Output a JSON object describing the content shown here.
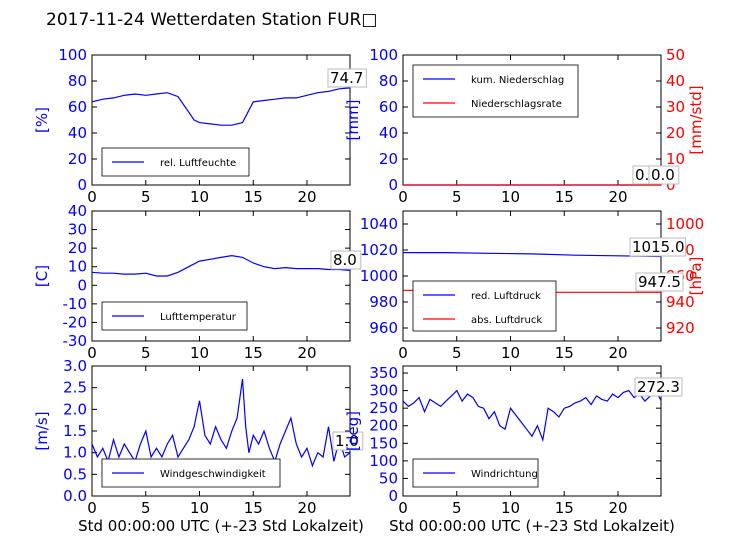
{
  "title": "2017-11-24 Wetterdaten Station FUR□",
  "colors": {
    "primary": "#0000ff",
    "secondary": "#ff0000",
    "axis": "#000000"
  },
  "chart_data": [
    {
      "type": "line",
      "panel": "humidity",
      "ylabel": "[%]",
      "ylim": [
        0,
        100
      ],
      "yticks": [
        0,
        20,
        40,
        60,
        80,
        100
      ],
      "xlim": [
        0,
        24
      ],
      "xticks": [
        0,
        5,
        10,
        15,
        20
      ],
      "xlabel": "",
      "legend": [
        "rel. Luftfeuchte"
      ],
      "legend_position": "lower-left",
      "annotation": "74.7",
      "series": [
        {
          "name": "rel. Luftfeuchte",
          "color": "#0000ff",
          "x": [
            0,
            1,
            2,
            3,
            4,
            5,
            6,
            7,
            8,
            9,
            9.5,
            10,
            11,
            12,
            13,
            14,
            14.5,
            15,
            16,
            17,
            18,
            19,
            20,
            21,
            22,
            23,
            24
          ],
          "y": [
            64,
            66,
            67,
            69,
            70,
            69,
            70,
            71,
            68,
            56,
            50,
            48,
            47,
            46,
            46,
            48,
            56,
            64,
            65,
            66,
            67,
            67,
            69,
            71,
            72,
            74,
            74.7
          ]
        }
      ]
    },
    {
      "type": "line",
      "panel": "precipitation",
      "ylabel": "[mm]",
      "ylabel_right": "[mm/std]",
      "ylim": [
        0,
        100
      ],
      "yticks": [
        0,
        20,
        40,
        60,
        80,
        100
      ],
      "ylim_right": [
        0,
        50
      ],
      "yticks_right": [
        0,
        10,
        20,
        30,
        40,
        50
      ],
      "xlim": [
        0,
        24
      ],
      "xticks": [
        0,
        5,
        10,
        15,
        20
      ],
      "xlabel": "",
      "legend": [
        "kum. Niederschlag",
        "Niederschlagsrate"
      ],
      "legend_position": "upper-left",
      "annotations": [
        "0.0",
        "0.0"
      ],
      "series": [
        {
          "name": "kum. Niederschlag",
          "color": "#0000ff",
          "x": [
            0,
            24
          ],
          "y": [
            0,
            0
          ]
        },
        {
          "name": "Niederschlagsrate",
          "color": "#ff0000",
          "x": [
            0,
            24
          ],
          "y": [
            0,
            0
          ]
        }
      ]
    },
    {
      "type": "line",
      "panel": "temperature",
      "ylabel": "[C]",
      "ylim": [
        -30,
        40
      ],
      "yticks": [
        -30,
        -20,
        -10,
        0,
        10,
        20,
        30,
        40
      ],
      "xlim": [
        0,
        24
      ],
      "xticks": [
        0,
        5,
        10,
        15,
        20
      ],
      "xlabel": "",
      "legend": [
        "Lufttemperatur"
      ],
      "legend_position": "lower-left",
      "annotation": "8.0",
      "series": [
        {
          "name": "Lufttemperatur",
          "color": "#0000ff",
          "x": [
            0,
            1,
            2,
            3,
            4,
            5,
            6,
            7,
            8,
            9,
            10,
            11,
            12,
            13,
            14,
            15,
            16,
            17,
            18,
            19,
            20,
            21,
            22,
            23,
            24
          ],
          "y": [
            7,
            6.5,
            6.5,
            6,
            6,
            6.5,
            5,
            5,
            7,
            10,
            13,
            14,
            15,
            16,
            15,
            12,
            10,
            9,
            9.5,
            9,
            9,
            9,
            8.5,
            8.5,
            8
          ]
        }
      ]
    },
    {
      "type": "line",
      "panel": "pressure",
      "ylim": [
        950,
        1050
      ],
      "yticks": [
        960,
        980,
        1000,
        1020,
        1040
      ],
      "ylabel_right": "[hPa]",
      "ylim_right": [
        910,
        1010
      ],
      "yticks_right": [
        920,
        940,
        960,
        980,
        1000
      ],
      "xlim": [
        0,
        24
      ],
      "xticks": [
        0,
        5,
        10,
        15,
        20
      ],
      "xlabel": "",
      "legend": [
        "red. Luftdruck",
        "abs. Luftdruck"
      ],
      "legend_position": "lower-left",
      "annotations": [
        "1015.0",
        "947.5"
      ],
      "series": [
        {
          "name": "red. Luftdruck",
          "color": "#0000ff",
          "x": [
            0,
            4,
            8,
            12,
            16,
            20,
            24
          ],
          "y": [
            1018,
            1018,
            1017.5,
            1017,
            1016,
            1015.5,
            1015
          ]
        },
        {
          "name": "abs. Luftdruck",
          "axis": "right",
          "color": "#ff0000",
          "x": [
            0,
            4,
            8,
            12,
            16,
            20,
            24
          ],
          "y": [
            949,
            948.5,
            948,
            947.5,
            947.5,
            947.5,
            947.5
          ]
        }
      ]
    },
    {
      "type": "line",
      "panel": "wind-speed",
      "ylabel": "[m/s]",
      "ylim": [
        0,
        3.0
      ],
      "yticks": [
        0.0,
        0.5,
        1.0,
        1.5,
        2.0,
        2.5,
        3.0
      ],
      "xlim": [
        0,
        24
      ],
      "xticks": [
        0,
        5,
        10,
        15,
        20
      ],
      "xlabel": "Std 00:00:00 UTC (+-23 Std Lokalzeit)",
      "legend": [
        "Windgeschwindigkeit"
      ],
      "legend_position": "lower-left",
      "annotation": "1.0",
      "series": [
        {
          "name": "Windgeschwindigkeit",
          "color": "#0000ff",
          "x": [
            0,
            0.5,
            1,
            1.5,
            2,
            2.5,
            3,
            3.5,
            4,
            4.5,
            5,
            5.5,
            6,
            6.5,
            7,
            7.5,
            8,
            8.5,
            9,
            9.5,
            10,
            10.5,
            11,
            11.5,
            12,
            12.5,
            13,
            13.5,
            14,
            14.3,
            14.6,
            15,
            15.5,
            16,
            16.5,
            17,
            17.5,
            18,
            18.5,
            19,
            19.5,
            20,
            20.5,
            21,
            21.5,
            22,
            22.5,
            23,
            23.5,
            24
          ],
          "y": [
            1.2,
            0.9,
            1.1,
            0.8,
            1.3,
            0.9,
            1.2,
            1.0,
            0.8,
            1.2,
            1.5,
            0.9,
            1.1,
            0.9,
            1.2,
            1.4,
            0.9,
            1.1,
            1.3,
            1.6,
            2.2,
            1.4,
            1.2,
            1.6,
            1.3,
            1.1,
            1.5,
            1.8,
            2.7,
            1.6,
            1.0,
            1.4,
            1.2,
            1.5,
            1.1,
            0.8,
            1.2,
            1.5,
            1.8,
            1.2,
            0.9,
            1.1,
            0.7,
            1.0,
            0.9,
            1.6,
            0.8,
            1.3,
            0.9,
            1.0
          ]
        }
      ]
    },
    {
      "type": "line",
      "panel": "wind-direction",
      "ylabel": "[deg]",
      "ylim": [
        0,
        370
      ],
      "yticks": [
        0,
        50,
        100,
        150,
        200,
        250,
        300,
        350
      ],
      "xlim": [
        0,
        24
      ],
      "xticks": [
        0,
        5,
        10,
        15,
        20
      ],
      "xlabel": "Std 00:00:00 UTC (+-23 Std Lokalzeit)",
      "legend": [
        "Windrichtung"
      ],
      "legend_position": "lower-left",
      "annotation": "272.3",
      "series": [
        {
          "name": "Windrichtung",
          "color": "#0000ff",
          "x": [
            0,
            0.5,
            1,
            1.5,
            2,
            2.5,
            3,
            3.5,
            4,
            4.5,
            5,
            5.5,
            6,
            6.5,
            7,
            7.5,
            8,
            8.5,
            9,
            9.5,
            10,
            10.5,
            11,
            11.5,
            12,
            12.5,
            13,
            13.5,
            14,
            14.5,
            15,
            15.5,
            16,
            16.5,
            17,
            17.5,
            18,
            18.5,
            19,
            19.5,
            20,
            20.5,
            21,
            21.5,
            22,
            22.5,
            23,
            23.5,
            24
          ],
          "y": [
            270,
            255,
            265,
            280,
            240,
            275,
            265,
            255,
            270,
            285,
            300,
            270,
            290,
            280,
            255,
            250,
            220,
            240,
            200,
            190,
            250,
            230,
            210,
            190,
            170,
            200,
            160,
            250,
            240,
            225,
            250,
            255,
            265,
            270,
            280,
            260,
            285,
            275,
            270,
            290,
            280,
            295,
            300,
            280,
            290,
            270,
            285,
            300,
            272
          ]
        }
      ]
    }
  ]
}
